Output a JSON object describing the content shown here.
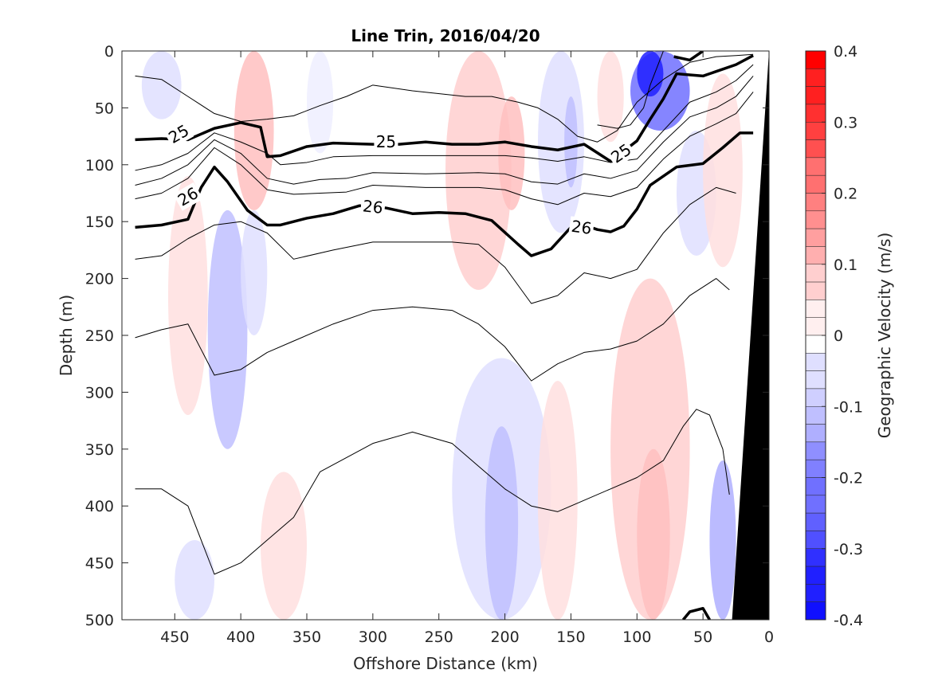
{
  "chart_data": {
    "type": "contour",
    "title": "Line Trin, 2016/04/20",
    "xlabel": "Offshore Distance (km)",
    "ylabel": "Depth (m)",
    "colorbar_label": "Geographic Velocity (m/s)",
    "xlim": [
      490,
      0
    ],
    "ylim": [
      0,
      500
    ],
    "x_ticks": [
      450,
      400,
      350,
      300,
      250,
      200,
      150,
      100,
      50,
      0
    ],
    "y_ticks": [
      0,
      50,
      100,
      150,
      200,
      250,
      300,
      350,
      400,
      450,
      500
    ],
    "colorbar": {
      "range": [
        -0.4,
        0.4
      ],
      "ticks": [
        0.4,
        0.3,
        0.2,
        0.1,
        0,
        -0.1,
        -0.2,
        -0.3,
        -0.4
      ],
      "tick_labels": [
        "0.4",
        "0.3",
        "0.2",
        "0.1",
        "0",
        "-0.1",
        "-0.2",
        "-0.3",
        "-0.4"
      ],
      "levels": 32,
      "positive_color": "#ff0000",
      "negative_color": "#0000ff",
      "zero_color": "#ffffff"
    },
    "velocity_patches": [
      {
        "x": [
          475,
          445
        ],
        "y": [
          0,
          60
        ],
        "v": -0.04
      },
      {
        "x": [
          405,
          375
        ],
        "y": [
          0,
          140
        ],
        "v": 0.09
      },
      {
        "x": [
          350,
          330
        ],
        "y": [
          0,
          90
        ],
        "v": -0.03
      },
      {
        "x": [
          455,
          425
        ],
        "y": [
          110,
          320
        ],
        "v": 0.05
      },
      {
        "x": [
          425,
          395
        ],
        "y": [
          140,
          350
        ],
        "v": -0.09
      },
      {
        "x": [
          400,
          380
        ],
        "y": [
          140,
          250
        ],
        "v": -0.05
      },
      {
        "x": [
          245,
          195
        ],
        "y": [
          0,
          210
        ],
        "v": 0.07
      },
      {
        "x": [
          205,
          185
        ],
        "y": [
          40,
          140
        ],
        "v": 0.09
      },
      {
        "x": [
          175,
          140
        ],
        "y": [
          0,
          160
        ],
        "v": -0.06
      },
      {
        "x": [
          155,
          145
        ],
        "y": [
          40,
          120
        ],
        "v": -0.1
      },
      {
        "x": [
          130,
          110
        ],
        "y": [
          0,
          80
        ],
        "v": 0.05
      },
      {
        "x": [
          105,
          60
        ],
        "y": [
          0,
          70
        ],
        "v": -0.22
      },
      {
        "x": [
          100,
          80
        ],
        "y": [
          0,
          40
        ],
        "v": -0.35
      },
      {
        "x": [
          70,
          40
        ],
        "y": [
          70,
          180
        ],
        "v": -0.05
      },
      {
        "x": [
          50,
          20
        ],
        "y": [
          20,
          190
        ],
        "v": 0.04
      },
      {
        "x": [
          240,
          165
        ],
        "y": [
          270,
          500
        ],
        "v": -0.06
      },
      {
        "x": [
          215,
          190
        ],
        "y": [
          330,
          500
        ],
        "v": -0.11
      },
      {
        "x": [
          175,
          145
        ],
        "y": [
          290,
          500
        ],
        "v": 0.06
      },
      {
        "x": [
          120,
          60
        ],
        "y": [
          200,
          500
        ],
        "v": 0.07
      },
      {
        "x": [
          100,
          75
        ],
        "y": [
          350,
          500
        ],
        "v": 0.11
      },
      {
        "x": [
          385,
          350
        ],
        "y": [
          370,
          500
        ],
        "v": 0.04
      },
      {
        "x": [
          450,
          420
        ],
        "y": [
          430,
          500
        ],
        "v": -0.04
      },
      {
        "x": [
          45,
          25
        ],
        "y": [
          360,
          500
        ],
        "v": -0.12
      }
    ],
    "isopycnals": [
      {
        "sigma": "25",
        "bold": true,
        "x": [
          480,
          460,
          440,
          420,
          400,
          385,
          380,
          370,
          350,
          330,
          300,
          280,
          260,
          240,
          220,
          200,
          180,
          160,
          140,
          120,
          100,
          90,
          80,
          70,
          60,
          50,
          40,
          25,
          12
        ],
        "y": [
          78,
          77,
          78,
          68,
          63,
          67,
          93,
          92,
          84,
          81,
          82,
          82,
          80,
          82,
          82,
          80,
          84,
          87,
          82,
          97,
          79,
          60,
          42,
          20,
          21,
          22,
          18,
          12,
          4
        ]
      },
      {
        "sigma": "26",
        "bold": true,
        "x": [
          480,
          460,
          440,
          430,
          420,
          410,
          395,
          380,
          370,
          350,
          330,
          310,
          290,
          270,
          250,
          230,
          210,
          190,
          180,
          165,
          150,
          140,
          130,
          120,
          110,
          100,
          90,
          70,
          50,
          35,
          22,
          12
        ],
        "y": [
          155,
          153,
          148,
          120,
          102,
          115,
          140,
          153,
          153,
          147,
          143,
          136,
          138,
          143,
          142,
          143,
          149,
          170,
          180,
          174,
          155,
          153,
          157,
          159,
          154,
          139,
          118,
          102,
          99,
          85,
          72,
          72
        ]
      },
      {
        "sigma": "",
        "bold": false,
        "x": [
          480,
          460,
          440,
          420,
          400,
          380,
          370,
          350,
          330,
          300,
          260,
          220,
          200,
          180,
          160,
          140,
          120,
          100,
          80,
          60,
          40,
          25,
          12
        ],
        "y": [
          105,
          100,
          90,
          72,
          80,
          90,
          100,
          98,
          93,
          92,
          92,
          92,
          92,
          94,
          97,
          93,
          98,
          95,
          70,
          45,
          36,
          26,
          12
        ]
      },
      {
        "sigma": "",
        "bold": false,
        "x": [
          480,
          460,
          440,
          420,
          400,
          380,
          360,
          340,
          320,
          300,
          260,
          220,
          200,
          180,
          160,
          140,
          120,
          100,
          80,
          60,
          40,
          25,
          12
        ],
        "y": [
          118,
          112,
          100,
          78,
          90,
          112,
          117,
          113,
          112,
          107,
          108,
          107,
          108,
          115,
          117,
          108,
          112,
          105,
          80,
          58,
          50,
          40,
          22
        ]
      },
      {
        "sigma": "",
        "bold": false,
        "x": [
          480,
          460,
          440,
          420,
          400,
          380,
          360,
          340,
          320,
          300,
          260,
          220,
          200,
          180,
          160,
          140,
          120,
          100,
          80,
          60,
          40,
          25,
          12
        ],
        "y": [
          130,
          125,
          112,
          85,
          100,
          122,
          126,
          125,
          124,
          118,
          120,
          120,
          122,
          130,
          135,
          125,
          128,
          120,
          95,
          75,
          64,
          55,
          36
        ]
      },
      {
        "sigma": "",
        "bold": false,
        "x": [
          480,
          460,
          440,
          420,
          400,
          380,
          360,
          340,
          320,
          300,
          270,
          230,
          210,
          190,
          175,
          160,
          145,
          130,
          115,
          100,
          80,
          60,
          40,
          25,
          12
        ],
        "y": [
          22,
          25,
          40,
          55,
          62,
          60,
          57,
          48,
          40,
          30,
          35,
          40,
          40,
          45,
          50,
          60,
          75,
          80,
          70,
          45,
          25,
          10,
          5,
          4,
          3
        ]
      },
      {
        "sigma": "",
        "bold": false,
        "x": [
          130,
          115,
          105,
          95,
          90,
          85,
          80
        ],
        "y": [
          65,
          68,
          65,
          50,
          30,
          15,
          0
        ]
      },
      {
        "sigma": "",
        "bold": false,
        "x": [
          480,
          460,
          440,
          420,
          400,
          380,
          360,
          330,
          300,
          270,
          240,
          220,
          200,
          180,
          160,
          140,
          120,
          100,
          80,
          60,
          40,
          25
        ],
        "y": [
          183,
          180,
          165,
          153,
          150,
          160,
          183,
          175,
          168,
          168,
          168,
          170,
          190,
          222,
          215,
          195,
          200,
          192,
          160,
          135,
          120,
          125
        ]
      },
      {
        "sigma": "",
        "bold": false,
        "x": [
          480,
          460,
          440,
          420,
          400,
          380,
          360,
          330,
          300,
          270,
          240,
          220,
          200,
          180,
          160,
          140,
          120,
          100,
          80,
          60,
          40,
          30
        ],
        "y": [
          252,
          245,
          240,
          285,
          280,
          265,
          255,
          240,
          228,
          225,
          228,
          240,
          260,
          290,
          275,
          265,
          262,
          255,
          240,
          215,
          200,
          210
        ]
      },
      {
        "sigma": "",
        "bold": false,
        "x": [
          480,
          460,
          440,
          420,
          400,
          380,
          360,
          340,
          300,
          270,
          240,
          220,
          200,
          180,
          160,
          140,
          120,
          100,
          80,
          65,
          55,
          45,
          35,
          30
        ],
        "y": [
          385,
          385,
          400,
          460,
          450,
          430,
          410,
          370,
          345,
          335,
          345,
          365,
          385,
          400,
          405,
          395,
          385,
          375,
          360,
          330,
          315,
          320,
          350,
          390
        ]
      },
      {
        "sigma": "",
        "bold": true,
        "x": [
          65,
          60,
          50,
          45
        ],
        "y": [
          500,
          493,
          490,
          500
        ]
      },
      {
        "sigma": "",
        "bold": true,
        "x": [
          72,
          60,
          50
        ],
        "y": [
          5,
          8,
          0
        ]
      }
    ],
    "contour_labels": [
      {
        "text": "25",
        "x": 447,
        "y": 73,
        "angle": -30
      },
      {
        "text": "25",
        "x": 290,
        "y": 80,
        "angle": 0
      },
      {
        "text": "25",
        "x": 112,
        "y": 90,
        "angle": -35
      },
      {
        "text": "26",
        "x": 440,
        "y": 128,
        "angle": -30
      },
      {
        "text": "26",
        "x": 300,
        "y": 137,
        "angle": 6
      },
      {
        "text": "26",
        "x": 142,
        "y": 155,
        "angle": 8
      }
    ],
    "bathymetry": {
      "x": [
        0,
        0,
        25,
        22
      ],
      "y": [
        0,
        500,
        500,
        500
      ],
      "color": "#000000"
    }
  }
}
